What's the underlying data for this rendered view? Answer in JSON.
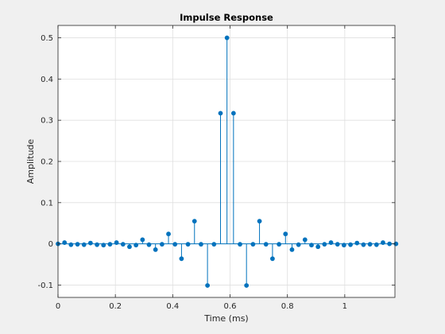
{
  "chart_data": {
    "type": "stem",
    "title": "Impulse Response",
    "xlabel": "Time (ms)",
    "ylabel": "Amplitude",
    "xlim": [
      0,
      1.175
    ],
    "ylim": [
      -0.13,
      0.53
    ],
    "grid": true,
    "xticks": [
      0,
      0.2,
      0.4,
      0.6,
      0.8,
      1
    ],
    "xtick_labels": [
      "0",
      "0.2",
      "0.4",
      "0.6",
      "0.8",
      "1"
    ],
    "yticks": [
      -0.1,
      0,
      0.1,
      0.2,
      0.3,
      0.4,
      0.5
    ],
    "ytick_labels": [
      "-0.1",
      "0",
      "0.1",
      "0.2",
      "0.3",
      "0.4",
      "0.5"
    ],
    "series": [
      {
        "color": "#0072bd",
        "marker": "circle-filled",
        "x": [
          0.0,
          0.0227,
          0.0453,
          0.068,
          0.0907,
          0.1133,
          0.136,
          0.1587,
          0.1813,
          0.204,
          0.2267,
          0.2493,
          0.272,
          0.2947,
          0.3173,
          0.34,
          0.3627,
          0.3853,
          0.408,
          0.4307,
          0.4533,
          0.476,
          0.4987,
          0.5213,
          0.544,
          0.5667,
          0.5893,
          0.612,
          0.6347,
          0.6573,
          0.68,
          0.7027,
          0.7253,
          0.748,
          0.7707,
          0.7933,
          0.816,
          0.8387,
          0.8613,
          0.884,
          0.9067,
          0.9293,
          0.952,
          0.9747,
          0.9973,
          1.02,
          1.0427,
          1.0653,
          1.088,
          1.1107,
          1.1333,
          1.156,
          1.1787
        ],
        "y": [
          0.0,
          0.003,
          -0.002,
          -0.001,
          -0.002,
          0.002,
          -0.002,
          -0.003,
          -0.001,
          0.003,
          -0.001,
          -0.007,
          -0.003,
          0.01,
          -0.002,
          -0.014,
          -0.001,
          0.024,
          -0.001,
          -0.036,
          -0.001,
          0.055,
          -0.001,
          -0.101,
          -0.001,
          0.317,
          0.5,
          0.317,
          -0.001,
          -0.101,
          -0.001,
          0.055,
          -0.001,
          -0.036,
          -0.001,
          0.024,
          -0.014,
          -0.002,
          0.01,
          -0.003,
          -0.007,
          -0.001,
          0.003,
          -0.001,
          -0.003,
          -0.002,
          0.002,
          -0.002,
          -0.001,
          -0.002,
          0.003,
          0.0,
          0.0
        ]
      }
    ]
  }
}
